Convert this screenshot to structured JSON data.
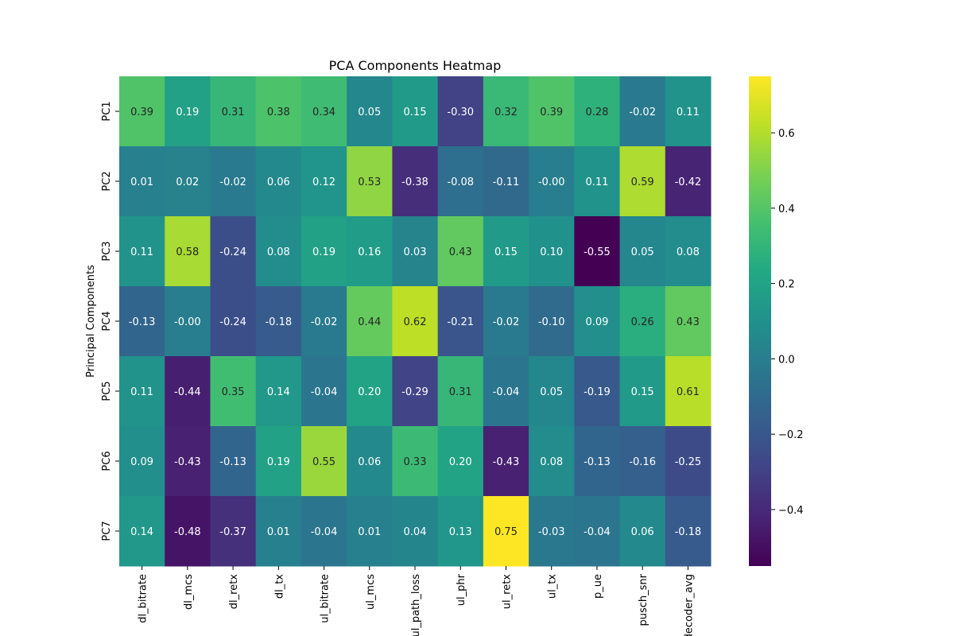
{
  "chart_data": {
    "type": "heatmap",
    "title": "PCA Components Heatmap",
    "xlabel": "",
    "ylabel": "Principal Components",
    "rows": [
      "PC1",
      "PC2",
      "PC3",
      "PC4",
      "PC5",
      "PC6",
      "PC7"
    ],
    "columns": [
      "dl_bitrate",
      "dl_mcs",
      "dl_retx",
      "dl_tx",
      "ul_bitrate",
      "ul_mcs",
      "ul_path_loss",
      "ul_phr",
      "ul_retx",
      "ul_tx",
      "p_ue",
      "pusch_snr",
      "decoder_avg"
    ],
    "values": [
      [
        0.39,
        0.19,
        0.31,
        0.38,
        0.34,
        0.05,
        0.15,
        -0.3,
        0.32,
        0.39,
        0.28,
        -0.02,
        0.11
      ],
      [
        0.01,
        0.02,
        -0.02,
        0.06,
        0.12,
        0.53,
        -0.38,
        -0.08,
        -0.11,
        -0.0,
        0.11,
        0.59,
        -0.42
      ],
      [
        0.11,
        0.58,
        -0.24,
        0.08,
        0.19,
        0.16,
        0.03,
        0.43,
        0.15,
        0.1,
        -0.55,
        0.05,
        0.08
      ],
      [
        -0.13,
        -0.0,
        -0.24,
        -0.18,
        -0.02,
        0.44,
        0.62,
        -0.21,
        -0.02,
        -0.1,
        0.09,
        0.26,
        0.43
      ],
      [
        0.11,
        -0.44,
        0.35,
        0.14,
        -0.04,
        0.2,
        -0.29,
        0.31,
        -0.04,
        0.05,
        -0.19,
        0.15,
        0.61
      ],
      [
        0.09,
        -0.43,
        -0.13,
        0.19,
        0.55,
        0.06,
        0.33,
        0.2,
        -0.43,
        0.08,
        -0.13,
        -0.16,
        -0.25
      ],
      [
        0.14,
        -0.48,
        -0.37,
        0.01,
        -0.04,
        0.01,
        0.04,
        0.13,
        0.75,
        -0.03,
        -0.04,
        0.06,
        -0.18
      ]
    ],
    "colormap": "viridis",
    "vmin": -0.55,
    "vmax": 0.75,
    "colorbar_ticks": [
      0.6,
      0.4,
      0.2,
      0.0,
      -0.2,
      -0.4
    ],
    "annotated": true,
    "grid": false
  }
}
